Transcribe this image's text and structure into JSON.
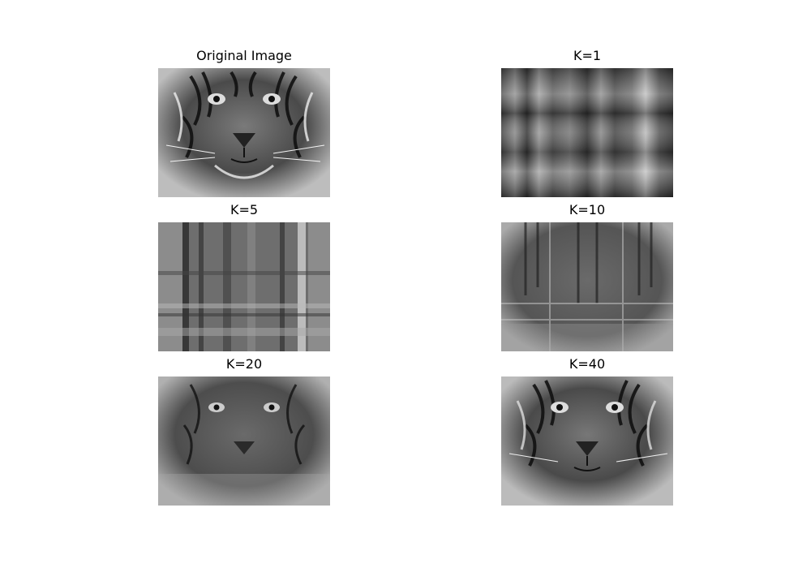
{
  "figure": {
    "panels": [
      {
        "id": "original",
        "title": "Original Image",
        "description_icon": "tiger-face-image"
      },
      {
        "id": "k1",
        "title": "K=1",
        "description_icon": "plaid-stripe-image"
      },
      {
        "id": "k5",
        "title": "K=5",
        "description_icon": "low-rank-tiger-image"
      },
      {
        "id": "k10",
        "title": "K=10",
        "description_icon": "low-rank-tiger-image"
      },
      {
        "id": "k20",
        "title": "K=20",
        "description_icon": "low-rank-tiger-image"
      },
      {
        "id": "k40",
        "title": "K=40",
        "description_icon": "low-rank-tiger-image"
      }
    ]
  }
}
